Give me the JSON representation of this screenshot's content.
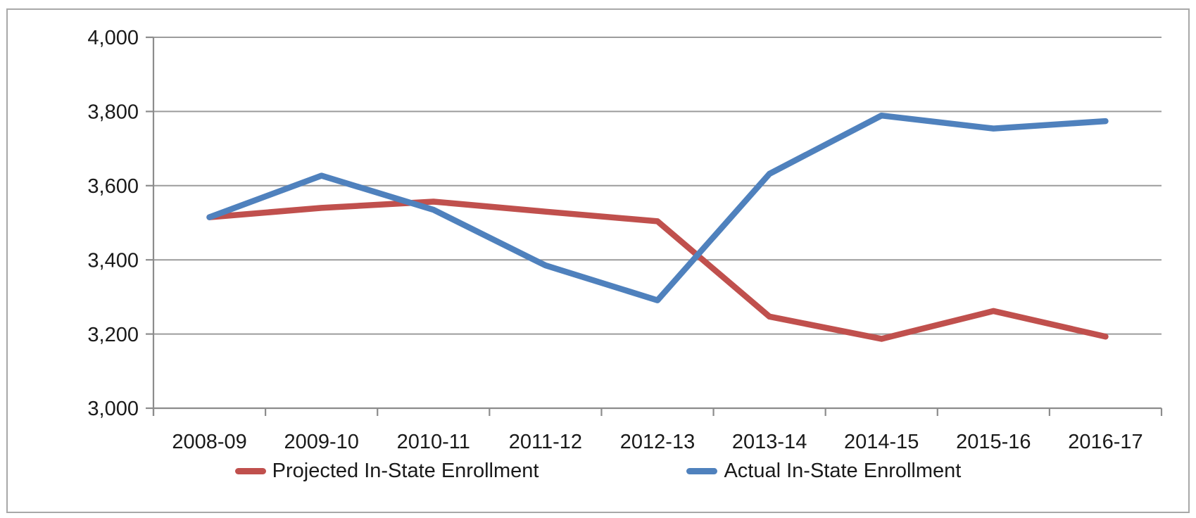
{
  "chart_data": {
    "type": "line",
    "title": "",
    "xlabel": "",
    "ylabel": "",
    "categories": [
      "2008-09",
      "2009-10",
      "2010-11",
      "2011-12",
      "2012-13",
      "2013-14",
      "2014-15",
      "2015-16",
      "2016-17"
    ],
    "series": [
      {
        "name": "Projected In-State Enrollment",
        "color": "#C0504D",
        "values": [
          3515,
          3540,
          3557,
          3530,
          3504,
          3247,
          3187,
          3262,
          3193
        ]
      },
      {
        "name": "Actual In-State Enrollment",
        "color": "#4F81BD",
        "values": [
          3515,
          3627,
          3535,
          3385,
          3291,
          3632,
          3789,
          3754,
          3774
        ]
      }
    ],
    "ylim": [
      3000,
      4000
    ],
    "y_ticks": [
      {
        "value": 3000,
        "label": "3,000"
      },
      {
        "value": 3200,
        "label": "3,200"
      },
      {
        "value": 3400,
        "label": "3,400"
      },
      {
        "value": 3600,
        "label": "3,600"
      },
      {
        "value": 3800,
        "label": "3,800"
      },
      {
        "value": 4000,
        "label": "4,000"
      }
    ],
    "grid": "horizontal-on",
    "legend_position": "bottom-center",
    "colors": {
      "gridline": "#9c9c9c",
      "axis": "#8c8c8c",
      "text": "#1a1a1a",
      "frame_border": "#a8a8a8",
      "background": "#ffffff"
    }
  }
}
